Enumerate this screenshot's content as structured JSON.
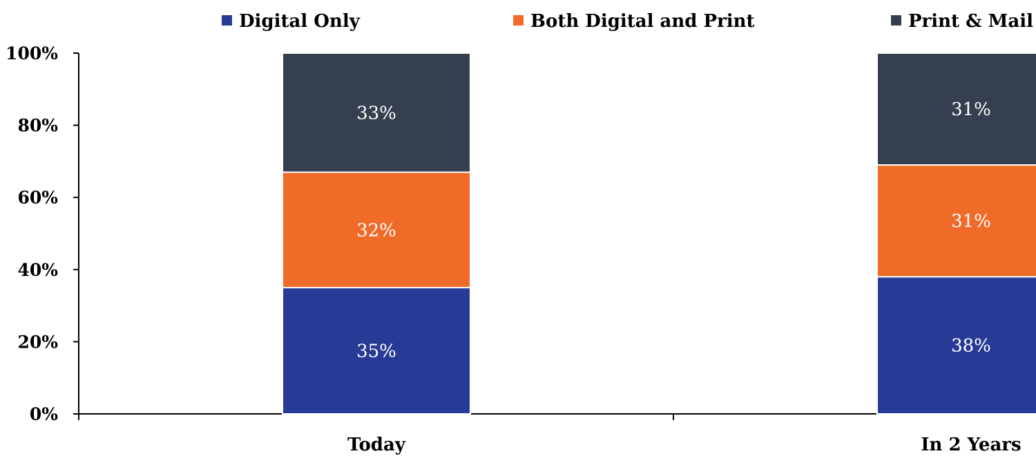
{
  "chart_data": {
    "type": "bar",
    "stacked": true,
    "categories": [
      "Today",
      "In 2 Years"
    ],
    "series": [
      {
        "name": "Digital Only",
        "values": [
          35,
          38
        ],
        "labels": [
          "35%",
          "38%"
        ],
        "color": "#273b96"
      },
      {
        "name": "Both Digital and Print",
        "values": [
          32,
          31
        ],
        "labels": [
          "32%",
          "31%"
        ],
        "color": "#f06a28"
      },
      {
        "name": "Print & Mail O",
        "values": [
          33,
          31
        ],
        "labels": [
          "33%",
          "31%"
        ],
        "color": "#353f4f"
      }
    ],
    "ylim": [
      0,
      100
    ],
    "yticks": [
      0,
      20,
      40,
      60,
      80,
      100
    ],
    "ytick_labels": [
      "0%",
      "20%",
      "40%",
      "60%",
      "80%",
      "100%"
    ],
    "grid": false,
    "legend_position": "top"
  }
}
